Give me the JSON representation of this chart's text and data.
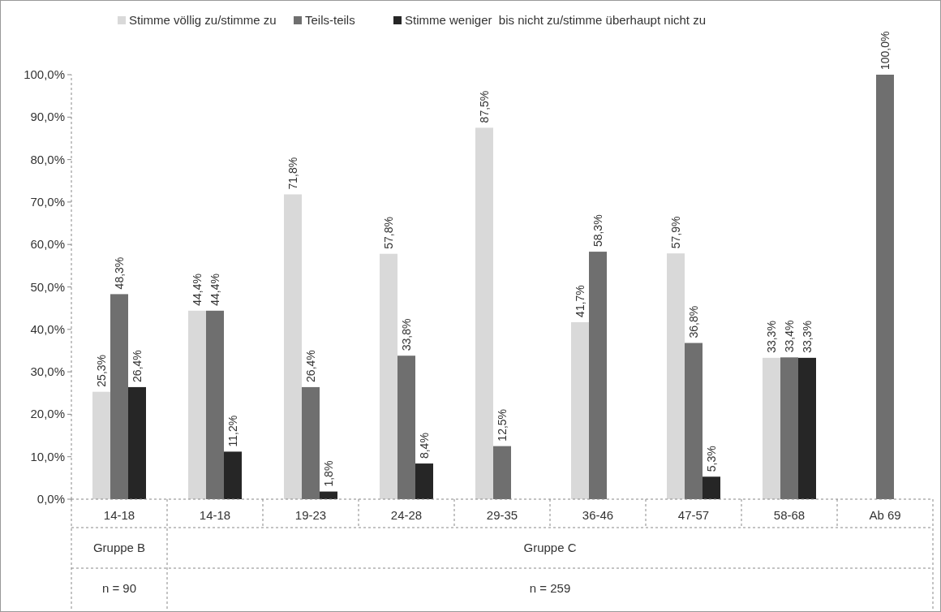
{
  "chart_data": {
    "type": "bar",
    "categories": [
      "14-18",
      "14-18",
      "19-23",
      "24-28",
      "29-35",
      "36-46",
      "47-57",
      "58-68",
      "Ab 69"
    ],
    "series": [
      {
        "name": "Stimme völlig zu/stimme zu",
        "color": "#d9d9d9",
        "values": [
          25.3,
          44.4,
          71.8,
          57.8,
          87.5,
          41.7,
          57.9,
          33.3,
          null
        ],
        "value_labels": [
          "25,3%",
          "44,4%",
          "71,8%",
          "57,8%",
          "87,5%",
          "41,7%",
          "57,9%",
          "33,3%",
          null
        ]
      },
      {
        "name": "Teils-teils",
        "color": "#6f6f6f",
        "values": [
          48.3,
          44.4,
          26.4,
          33.8,
          12.5,
          58.3,
          36.8,
          33.4,
          100.0
        ],
        "value_labels": [
          "48,3%",
          "44,4%",
          "26,4%",
          "33,8%",
          "12,5%",
          "58,3%",
          "36,8%",
          "33,4%",
          "100,0%"
        ]
      },
      {
        "name": "Stimme weniger  bis nicht zu/stimme überhaupt nicht zu",
        "color": "#262626",
        "values": [
          26.4,
          11.2,
          1.8,
          8.4,
          null,
          null,
          5.3,
          33.3,
          null
        ],
        "value_labels": [
          "26,4%",
          "11,2%",
          "1,8%",
          "8,4%",
          null,
          null,
          "5,3%",
          "33,3%",
          null
        ]
      }
    ],
    "ylim": [
      0,
      100
    ],
    "yticks": [
      {
        "value": 0,
        "label": "0,0%"
      },
      {
        "value": 10,
        "label": "10,0%"
      },
      {
        "value": 20,
        "label": "20,0%"
      },
      {
        "value": 30,
        "label": "30,0%"
      },
      {
        "value": 40,
        "label": "40,0%"
      },
      {
        "value": 50,
        "label": "50,0%"
      },
      {
        "value": 60,
        "label": "60,0%"
      },
      {
        "value": 70,
        "label": "70,0%"
      },
      {
        "value": 80,
        "label": "80,0%"
      },
      {
        "value": 90,
        "label": "90,0%"
      },
      {
        "value": 100,
        "label": "100,0%"
      }
    ],
    "annotations": [
      "Gruppe B",
      "n = 90",
      "Gruppe C",
      "n = 259"
    ],
    "grid": false,
    "legend": "top"
  }
}
